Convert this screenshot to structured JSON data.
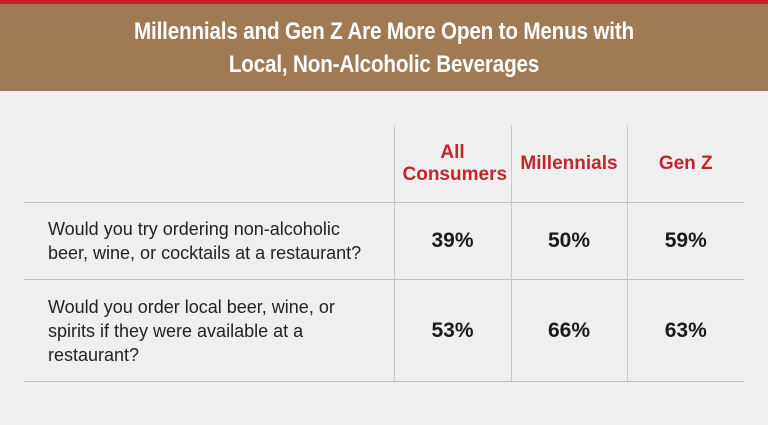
{
  "banner": {
    "title": "Millennials and Gen Z Are More Open to Menus with Local, Non-Alcoholic Beverages"
  },
  "colors": {
    "accent_red": "#c0272d",
    "banner_brown": "#a07a55",
    "background": "#efefef"
  },
  "chart_data": {
    "type": "table",
    "title": "Millennials and Gen Z Are More Open to Menus with Local, Non-Alcoholic Beverages",
    "columns": [
      "All Consumers",
      "Millennials",
      "Gen Z"
    ],
    "rows": [
      {
        "question": "Would you try ordering non-alcoholic beer, wine, or cocktails at a restaurant?",
        "values": [
          "39%",
          "50%",
          "59%"
        ]
      },
      {
        "question": "Would you order local beer, wine, or spirits if they were available at a restaurant?",
        "values": [
          "53%",
          "66%",
          "63%"
        ]
      }
    ]
  }
}
